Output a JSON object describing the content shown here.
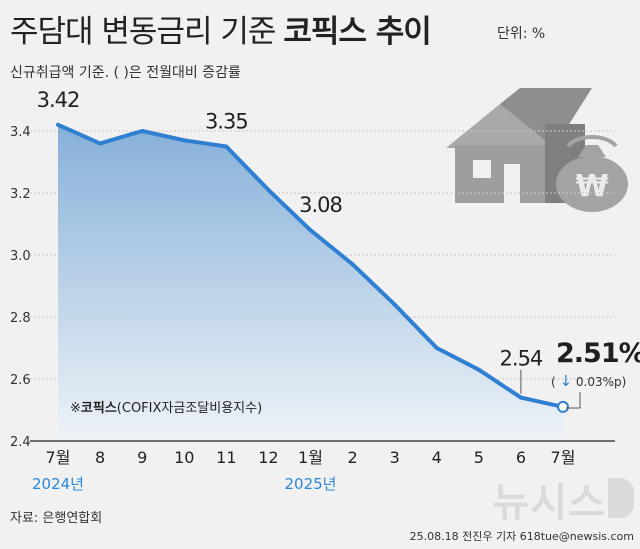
{
  "title": "주담대 변동금리 기준",
  "title_bold": "코픽스 추이",
  "unit": "단위: %",
  "subtitle": "신규취급액 기준. ( )은 전월대비 증감률",
  "legend_note": {
    "mark": "※",
    "bold": "코픽스",
    "rest": "(COFIX자금조달비용지수)"
  },
  "latest": {
    "value": "2.51%",
    "change_prefix": "(",
    "change": "0.03%p",
    "change_suffix": ")",
    "direction": "down"
  },
  "source": "자료: 은행연합회",
  "credit": "25.08.18 전진우 기자 618tue@newsis.com",
  "logo": "뉴시스",
  "chart_data": {
    "type": "area",
    "title": "주담대 변동금리 기준 코픽스 추이",
    "ylabel": "%",
    "ylim": [
      2.4,
      3.5
    ],
    "yticks": [
      2.4,
      2.6,
      2.8,
      3.0,
      3.2,
      3.4
    ],
    "ytick_labels": [
      "2.4",
      "2.6",
      "2.8",
      "3.0",
      "3.2",
      "3.4"
    ],
    "grid": true,
    "categories": [
      "7월",
      "8",
      "9",
      "10",
      "11",
      "12",
      "1월",
      "2",
      "3",
      "4",
      "5",
      "6",
      "7월"
    ],
    "year_labels": [
      {
        "index": 0,
        "label": "2024년"
      },
      {
        "index": 6,
        "label": "2025년"
      }
    ],
    "series": [
      {
        "name": "코픽스",
        "values": [
          3.42,
          3.36,
          3.4,
          3.37,
          3.35,
          3.21,
          3.08,
          2.97,
          2.84,
          2.7,
          2.63,
          2.54,
          2.51
        ]
      }
    ],
    "data_labels": [
      {
        "index": 0,
        "text": "3.42"
      },
      {
        "index": 4,
        "text": "3.35"
      },
      {
        "index": 6,
        "text": "3.08"
      },
      {
        "index": 11,
        "text": "2.54"
      }
    ],
    "colors": {
      "line": "#2f7fd2",
      "area_top": "#7aa9d6",
      "area_bottom": "#eef3f8",
      "grid": "#c8c8c8",
      "year": "#2a86d8"
    }
  }
}
